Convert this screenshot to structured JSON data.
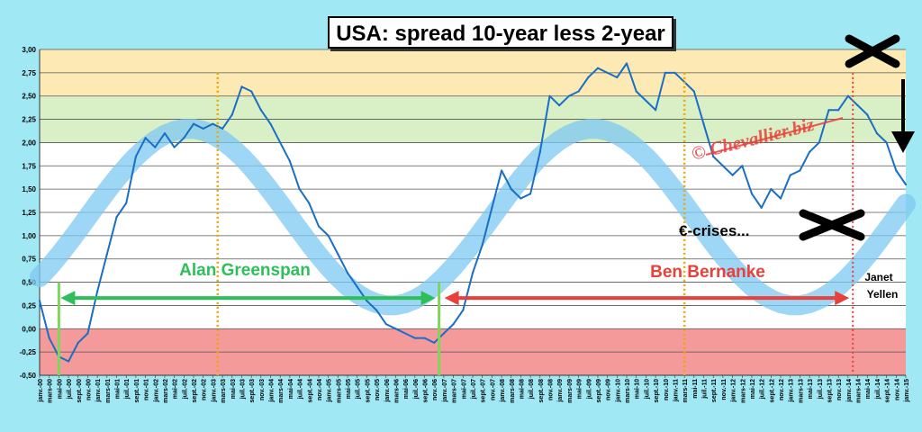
{
  "title": "USA: spread 10-year less 2-year",
  "colors": {
    "background": "#9fe8f4",
    "zone_high": "#fde9b3",
    "zone_mid": "#d9efc6",
    "zone_low": "#f59a9a",
    "series": "#1a6fc4",
    "trend_band": "#7ec8f2",
    "greenspan": "#2fbf5a",
    "bernanke": "#e8403a",
    "vline_dotted": "#f0a500",
    "vline_red_dotted": "#e8403a",
    "vline_green": "#7ed65a"
  },
  "annotations": {
    "greenspan": "Alan  Greenspan",
    "bernanke": "Ben  Bernanke",
    "yellen_line1": "Janet",
    "yellen_line2": "Yellen",
    "crises": "€-crises...",
    "watermark": "© Chevallier.biz"
  },
  "chart_data": {
    "type": "line",
    "title": "USA: spread 10-year less 2-year",
    "ylim": [
      -0.5,
      3.0
    ],
    "y_ticks": [
      "-0,50",
      "-0,25",
      "0,00",
      "0,25",
      "0,50",
      "0,75",
      "1,00",
      "1,25",
      "1,50",
      "1,75",
      "2,00",
      "2,25",
      "2,50",
      "2,75",
      "3,00"
    ],
    "x_range": [
      "janv.-00",
      "janv.-15"
    ],
    "x_tick_labels": [
      "janv.-00",
      "mars-00",
      "mai-00",
      "juil.-00",
      "sept.-00",
      "nov.-00",
      "janv.-01",
      "mars-01",
      "mai-01",
      "juil.-01",
      "sept.-01",
      "nov.-01",
      "janv.-02",
      "mars-02",
      "mai-02",
      "juil.-02",
      "sept.-02",
      "nov.-02",
      "janv.-03",
      "mars-03",
      "mai-03",
      "juil.-03",
      "sept.-03",
      "nov.-03",
      "janv.-04",
      "mars-04",
      "mai-04",
      "juil.-04",
      "sept.-04",
      "nov.-04",
      "janv.-05",
      "mars-05",
      "mai-05",
      "juil.-05",
      "sept.-05",
      "nov.-05",
      "janv.-06",
      "mars-06",
      "mai-06",
      "juil.-06",
      "sept.-06",
      "nov.-06",
      "janv.-07",
      "mars-07",
      "mai-07",
      "juil.-07",
      "sept.-07",
      "nov.-07",
      "janv.-08",
      "mars-08",
      "mai-08",
      "juil.-08",
      "sept.-08",
      "nov.-08",
      "janv.-09",
      "mars-09",
      "mai-09",
      "juil.-09",
      "sept.-09",
      "nov.-09",
      "janv.-10",
      "mars-10",
      "mai-10",
      "juil.-10",
      "sept.-10",
      "nov.-10",
      "janv.-11",
      "mars-11",
      "mai-11",
      "juil.-11",
      "sept.-11",
      "nov.-11",
      "janv.-12",
      "mars-12",
      "mai-12",
      "juil.-12",
      "sept.-12",
      "nov.-12",
      "janv.-13",
      "mars-13",
      "mai-13",
      "juil.-13",
      "sept.-13",
      "nov.-13",
      "janv.-14",
      "mars-14",
      "mai-14",
      "juil.-14",
      "sept.-14",
      "nov.-14",
      "janv.-15"
    ],
    "bands": [
      {
        "from": 2.5,
        "to": 3.0,
        "color": "zone_high"
      },
      {
        "from": 2.0,
        "to": 2.5,
        "color": "zone_mid"
      },
      {
        "from": -0.5,
        "to": 0.0,
        "color": "zone_low"
      }
    ],
    "series": [
      {
        "x": [
          "2000-01",
          "2000-03",
          "2000-05",
          "2000-07",
          "2000-09",
          "2000-11",
          "2001-01",
          "2001-03",
          "2001-05",
          "2001-07",
          "2001-09",
          "2001-11",
          "2002-01",
          "2002-03",
          "2002-05",
          "2002-07",
          "2002-09",
          "2002-11",
          "2003-01",
          "2003-03",
          "2003-05",
          "2003-07",
          "2003-09",
          "2003-11",
          "2004-01",
          "2004-03",
          "2004-05",
          "2004-07",
          "2004-09",
          "2004-11",
          "2005-01",
          "2005-03",
          "2005-05",
          "2005-07",
          "2005-09",
          "2005-11",
          "2006-01",
          "2006-03",
          "2006-05",
          "2006-07",
          "2006-09",
          "2006-11",
          "2007-01",
          "2007-03",
          "2007-05",
          "2007-07",
          "2007-09",
          "2007-11",
          "2008-01",
          "2008-03",
          "2008-05",
          "2008-07",
          "2008-09",
          "2008-11",
          "2009-01",
          "2009-03",
          "2009-05",
          "2009-07",
          "2009-09",
          "2009-11",
          "2010-01",
          "2010-03",
          "2010-05",
          "2010-07",
          "2010-09",
          "2010-11",
          "2011-01",
          "2011-03",
          "2011-05",
          "2011-07",
          "2011-09",
          "2011-11",
          "2012-01",
          "2012-03",
          "2012-05",
          "2012-07",
          "2012-09",
          "2012-11",
          "2013-01",
          "2013-03",
          "2013-05",
          "2013-07",
          "2013-09",
          "2013-11",
          "2014-01",
          "2014-03",
          "2014-05",
          "2014-07",
          "2014-09",
          "2014-11",
          "2015-01"
        ],
        "values": [
          0.3,
          -0.1,
          -0.3,
          -0.35,
          -0.15,
          -0.05,
          0.4,
          0.8,
          1.2,
          1.35,
          1.85,
          2.05,
          1.95,
          2.1,
          1.95,
          2.05,
          2.2,
          2.15,
          2.2,
          2.15,
          2.3,
          2.6,
          2.55,
          2.35,
          2.2,
          2.0,
          1.8,
          1.5,
          1.35,
          1.1,
          1.0,
          0.8,
          0.6,
          0.45,
          0.3,
          0.2,
          0.05,
          0.0,
          -0.05,
          -0.1,
          -0.1,
          -0.15,
          -0.05,
          0.05,
          0.2,
          0.6,
          0.9,
          1.3,
          1.7,
          1.5,
          1.4,
          1.45,
          1.9,
          2.5,
          2.4,
          2.5,
          2.55,
          2.7,
          2.8,
          2.75,
          2.7,
          2.85,
          2.55,
          2.45,
          2.35,
          2.75,
          2.75,
          2.65,
          2.55,
          2.2,
          1.85,
          1.75,
          1.65,
          1.75,
          1.45,
          1.3,
          1.5,
          1.4,
          1.65,
          1.7,
          1.9,
          2.0,
          2.35,
          2.35,
          2.5,
          2.4,
          2.3,
          2.1,
          2.0,
          1.7,
          1.55
        ]
      }
    ],
    "vlines": [
      {
        "x": "2000-05",
        "style": "green-solid"
      },
      {
        "x": "2003-02",
        "style": "orange-dotted"
      },
      {
        "x": "2006-12",
        "style": "green-solid"
      },
      {
        "x": "2011-03",
        "style": "orange-dotted"
      },
      {
        "x": "2014-02",
        "style": "red-dotted"
      }
    ],
    "grid": true
  }
}
